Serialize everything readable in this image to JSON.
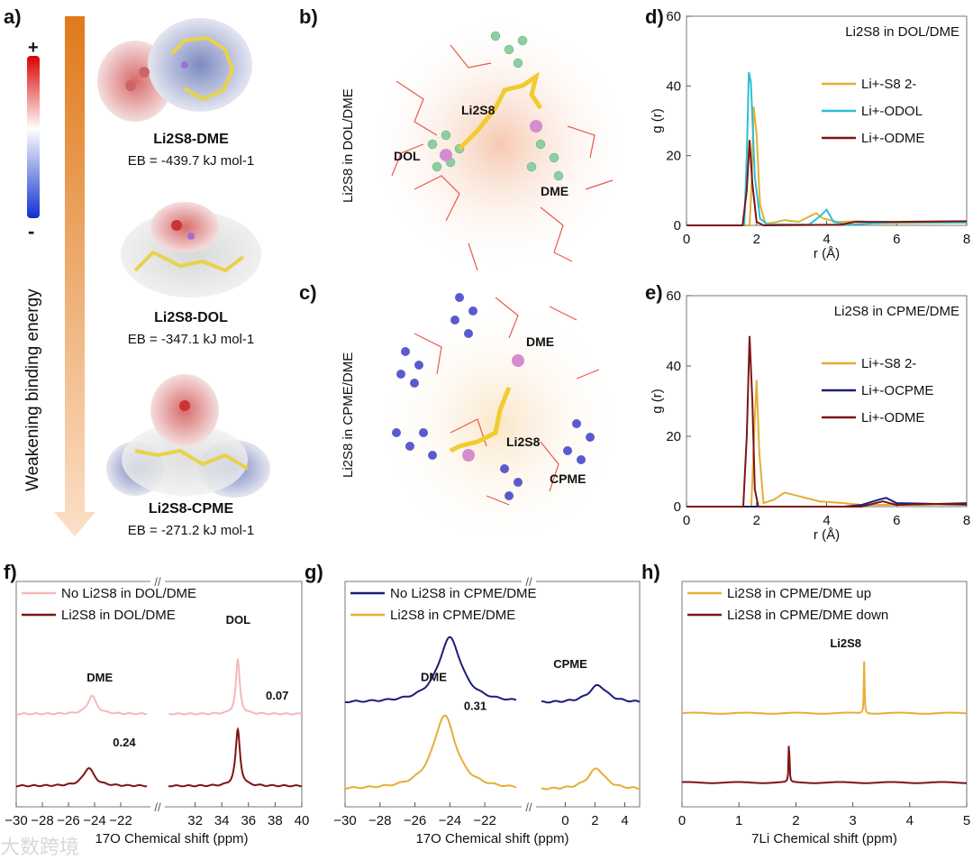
{
  "panel_labels": {
    "a": "a)",
    "b": "b)",
    "c": "c)",
    "d": "d)",
    "e": "e)",
    "f": "f)",
    "g": "g)",
    "h": "h)"
  },
  "panel_a": {
    "arrow_label": "Weakening binding energy",
    "scale_plus": "+",
    "scale_minus": "-",
    "molecules": [
      {
        "name": "Li2S8-DME",
        "energy": "EB = -439.7 kJ mol-1"
      },
      {
        "name": "Li2S8-DOL",
        "energy": "EB = -347.1 kJ mol-1"
      },
      {
        "name": "Li2S8-CPME",
        "energy": "EB = -271.2 kJ mol-1"
      }
    ]
  },
  "panel_b": {
    "side_label": "Li2S8 in DOL/DME",
    "labels": [
      "Li2S8",
      "DOL",
      "DME"
    ]
  },
  "panel_c": {
    "side_label": "Li2S8 in CPME/DME",
    "labels": [
      "DME",
      "Li2S8",
      "CPME"
    ]
  },
  "colors": {
    "yellow": "#e6ae35",
    "cyan": "#2cbfd6",
    "darkred": "#7d1414",
    "pink": "#f3b9b9",
    "navy": "#1b1d78",
    "blue_dash": "#3a4fe0",
    "red_dash": "#e0404a"
  },
  "watermark": "大数跨境",
  "chart_data": [
    {
      "id": "d",
      "type": "line",
      "title": "Li2S8 in DOL/DME",
      "xlabel": "r (Å)",
      "ylabel": "g (r)",
      "xlim": [
        0,
        8
      ],
      "ylim": [
        0,
        60
      ],
      "xticks": [
        0,
        2,
        4,
        6,
        8
      ],
      "yticks": [
        0,
        20,
        40,
        60
      ],
      "legend": "right",
      "series": [
        {
          "name": "Li+-S8 2-",
          "color": "#e6ae35",
          "points": [
            [
              0,
              0
            ],
            [
              1.8,
              0
            ],
            [
              1.86,
              12
            ],
            [
              1.92,
              34
            ],
            [
              2.0,
              26
            ],
            [
              2.1,
              6
            ],
            [
              2.25,
              0.5
            ],
            [
              2.5,
              0.8
            ],
            [
              2.8,
              1.5
            ],
            [
              3.2,
              1
            ],
            [
              3.5,
              2.5
            ],
            [
              3.7,
              3.5
            ],
            [
              3.9,
              2
            ],
            [
              4.3,
              1
            ],
            [
              5,
              1.2
            ],
            [
              5.5,
              0.6
            ],
            [
              8,
              0.8
            ]
          ]
        },
        {
          "name": "Li+-ODOL",
          "color": "#2cbfd6",
          "points": [
            [
              0,
              0
            ],
            [
              1.65,
              0
            ],
            [
              1.72,
              20
            ],
            [
              1.78,
              44
            ],
            [
              1.84,
              41
            ],
            [
              1.95,
              14
            ],
            [
              2.1,
              2
            ],
            [
              2.3,
              0.3
            ],
            [
              3.5,
              0.2
            ],
            [
              3.8,
              2.5
            ],
            [
              4.0,
              4.5
            ],
            [
              4.2,
              1
            ],
            [
              4.6,
              0.2
            ],
            [
              6,
              0.9
            ],
            [
              8,
              0.8
            ]
          ]
        },
        {
          "name": "Li+-ODME",
          "color": "#7d1414",
          "points": [
            [
              0,
              0
            ],
            [
              1.6,
              0
            ],
            [
              1.72,
              10
            ],
            [
              1.8,
              24.5
            ],
            [
              1.88,
              12
            ],
            [
              2.0,
              1
            ],
            [
              2.2,
              0
            ],
            [
              4.4,
              0.2
            ],
            [
              4.8,
              1
            ],
            [
              6,
              1
            ],
            [
              8,
              1.2
            ]
          ]
        }
      ]
    },
    {
      "id": "e",
      "type": "line",
      "title": "Li2S8 in CPME/DME",
      "xlabel": "r (Å)",
      "ylabel": "g (r)",
      "xlim": [
        0,
        8
      ],
      "ylim": [
        0,
        60
      ],
      "xticks": [
        0,
        2,
        4,
        6,
        8
      ],
      "yticks": [
        0,
        20,
        40,
        60
      ],
      "legend": "right",
      "series": [
        {
          "name": "Li+-S8 2-",
          "color": "#e6ae35",
          "points": [
            [
              0,
              0
            ],
            [
              1.85,
              0
            ],
            [
              1.95,
              25
            ],
            [
              2.0,
              36
            ],
            [
              2.08,
              15
            ],
            [
              2.2,
              1
            ],
            [
              2.5,
              2
            ],
            [
              2.8,
              4
            ],
            [
              3.2,
              3
            ],
            [
              3.8,
              1.5
            ],
            [
              4.5,
              1
            ],
            [
              5,
              0.5
            ],
            [
              8,
              0.6
            ]
          ]
        },
        {
          "name": "Li+-OCPME",
          "color": "#1b1d78",
          "points": [
            [
              0,
              0
            ],
            [
              4.5,
              0
            ],
            [
              5,
              0.5
            ],
            [
              5.5,
              2
            ],
            [
              5.7,
              2.5
            ],
            [
              6,
              1
            ],
            [
              8,
              0.6
            ]
          ]
        },
        {
          "name": "Li+-ODME",
          "color": "#7d1414",
          "points": [
            [
              0,
              0
            ],
            [
              1.62,
              0
            ],
            [
              1.72,
              20
            ],
            [
              1.8,
              48.5
            ],
            [
              1.88,
              30
            ],
            [
              1.95,
              5
            ],
            [
              2.05,
              0
            ],
            [
              5,
              0
            ],
            [
              5.6,
              1.5
            ],
            [
              6,
              0.5
            ],
            [
              8,
              1
            ]
          ]
        }
      ]
    },
    {
      "id": "f",
      "type": "line",
      "xlabel": "17O Chemical shift (ppm)",
      "legend": "top-left",
      "segments": [
        [
          -30,
          -20
        ],
        [
          30,
          40
        ]
      ],
      "ylim": [
        -0.29,
        2.84
      ],
      "xticks": [
        -30,
        -28,
        -26,
        -24,
        -22,
        32,
        34,
        36,
        38,
        40
      ],
      "series": [
        {
          "name": "No Li2S8 in DOL/DME",
          "color": "#f3b9b9",
          "offset": 1.0,
          "peaks": [
            {
              "center": -24.2,
              "height": 0.25,
              "width": 0.8
            },
            {
              "center": 35.2,
              "height": 0.74,
              "width": 0.35
            }
          ]
        },
        {
          "name": "Li2S8 in DOL/DME",
          "color": "#7d1414",
          "offset": 0.0,
          "peaks": [
            {
              "center": -24.45,
              "height": 0.25,
              "width": 1.0
            },
            {
              "center": 35.2,
              "height": 0.78,
              "width": 0.4
            }
          ]
        }
      ],
      "annotations": [
        {
          "text": "DME",
          "x": -24.6,
          "y": 1.45
        },
        {
          "text": "DOL",
          "x": 34.3,
          "y": 2.25
        },
        {
          "text": "0.24",
          "x": -22.6,
          "y": 0.55
        },
        {
          "text": "0.07",
          "x": 37.3,
          "y": 1.2
        }
      ]
    },
    {
      "id": "g",
      "type": "line",
      "xlabel": "17O Chemical shift (ppm)",
      "legend": "top-left",
      "segments": [
        [
          -30,
          -20.2
        ],
        [
          -1.6,
          5
        ]
      ],
      "ylim": [
        -0.2,
        2.4
      ],
      "xticks": [
        -30,
        -28,
        -26,
        -24,
        -22,
        0,
        2,
        4
      ],
      "series": [
        {
          "name": "No Li2S8 in CPME/DME",
          "color": "#1b1d78",
          "offset": 1.0,
          "peaks": [
            {
              "center": -24.0,
              "height": 0.75,
              "width": 1.6
            },
            {
              "center": 2.2,
              "height": 0.2,
              "width": 1.5
            }
          ]
        },
        {
          "name": "Li2S8 in CPME/DME",
          "color": "#e6ae35",
          "offset": 0.0,
          "peaks": [
            {
              "center": -24.3,
              "height": 0.85,
              "width": 1.6
            },
            {
              "center": 2.1,
              "height": 0.24,
              "width": 1.4
            }
          ]
        }
      ],
      "annotations": [
        {
          "text": "DME",
          "x": -26.8,
          "y": 2.0
        },
        {
          "text": "CPME",
          "x": -0.8,
          "y": 1.4
        },
        {
          "text": "0.31",
          "x": -23.2,
          "y": 0.92
        }
      ]
    },
    {
      "id": "h",
      "type": "line",
      "xlabel": "7Li Chemical shift (ppm)",
      "legend": "top-left",
      "xlim": [
        0,
        5
      ],
      "ylim": [
        -0.35,
        2.9
      ],
      "xticks": [
        0,
        1,
        2,
        3,
        4,
        5
      ],
      "series": [
        {
          "name": "Li2S8 in CPME/DME up",
          "color": "#e6ae35",
          "offset": 1.0,
          "peaks": [
            {
              "center": 3.2,
              "height": 0.75,
              "width": 0.015
            }
          ]
        },
        {
          "name": "Li2S8 in CPME/DME down",
          "color": "#7d1414",
          "offset": 0.0,
          "peaks": [
            {
              "center": 1.88,
              "height": 0.75,
              "width": 0.015
            }
          ]
        }
      ],
      "annotations": [
        {
          "text": "Li2S8",
          "x": 2.6,
          "y": 1.95
        }
      ]
    }
  ]
}
